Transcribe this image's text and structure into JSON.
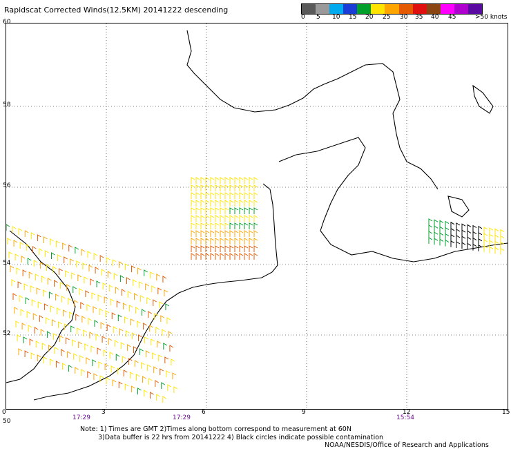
{
  "title": "Rapidscat Corrected Winds(12.5KM) 20141222 descending",
  "colorbar": {
    "colors": [
      "#5a5a5a",
      "#9a9a9a",
      "#00aaee",
      "#1c3cd8",
      "#00a02a",
      "#ffe400",
      "#ffa500",
      "#e55a00",
      "#e01010",
      "#8b4513",
      "#ff00ff",
      "#b000d0",
      "#5a0aa0"
    ],
    "labels": [
      "0",
      "5",
      "10",
      "15",
      "20",
      "25",
      "30",
      "35",
      "40",
      "45",
      ">50 knots"
    ]
  },
  "y_axis": [
    "60",
    "58",
    "56",
    "54",
    "52",
    "50"
  ],
  "x_axis": [
    "0",
    "3",
    "6",
    "9",
    "12",
    "15"
  ],
  "pass_times": [
    "17:29",
    "17:29",
    "15:54"
  ],
  "notes": [
    "Note: 1) Times are GMT 2)Times along bottom correspond to measurement at 60N",
    "3)Data buffer is 22 hrs from 20141222 4) Black circles indicate possible contamination",
    "NOAA/NESDIS/Office of Research and Applications"
  ]
}
